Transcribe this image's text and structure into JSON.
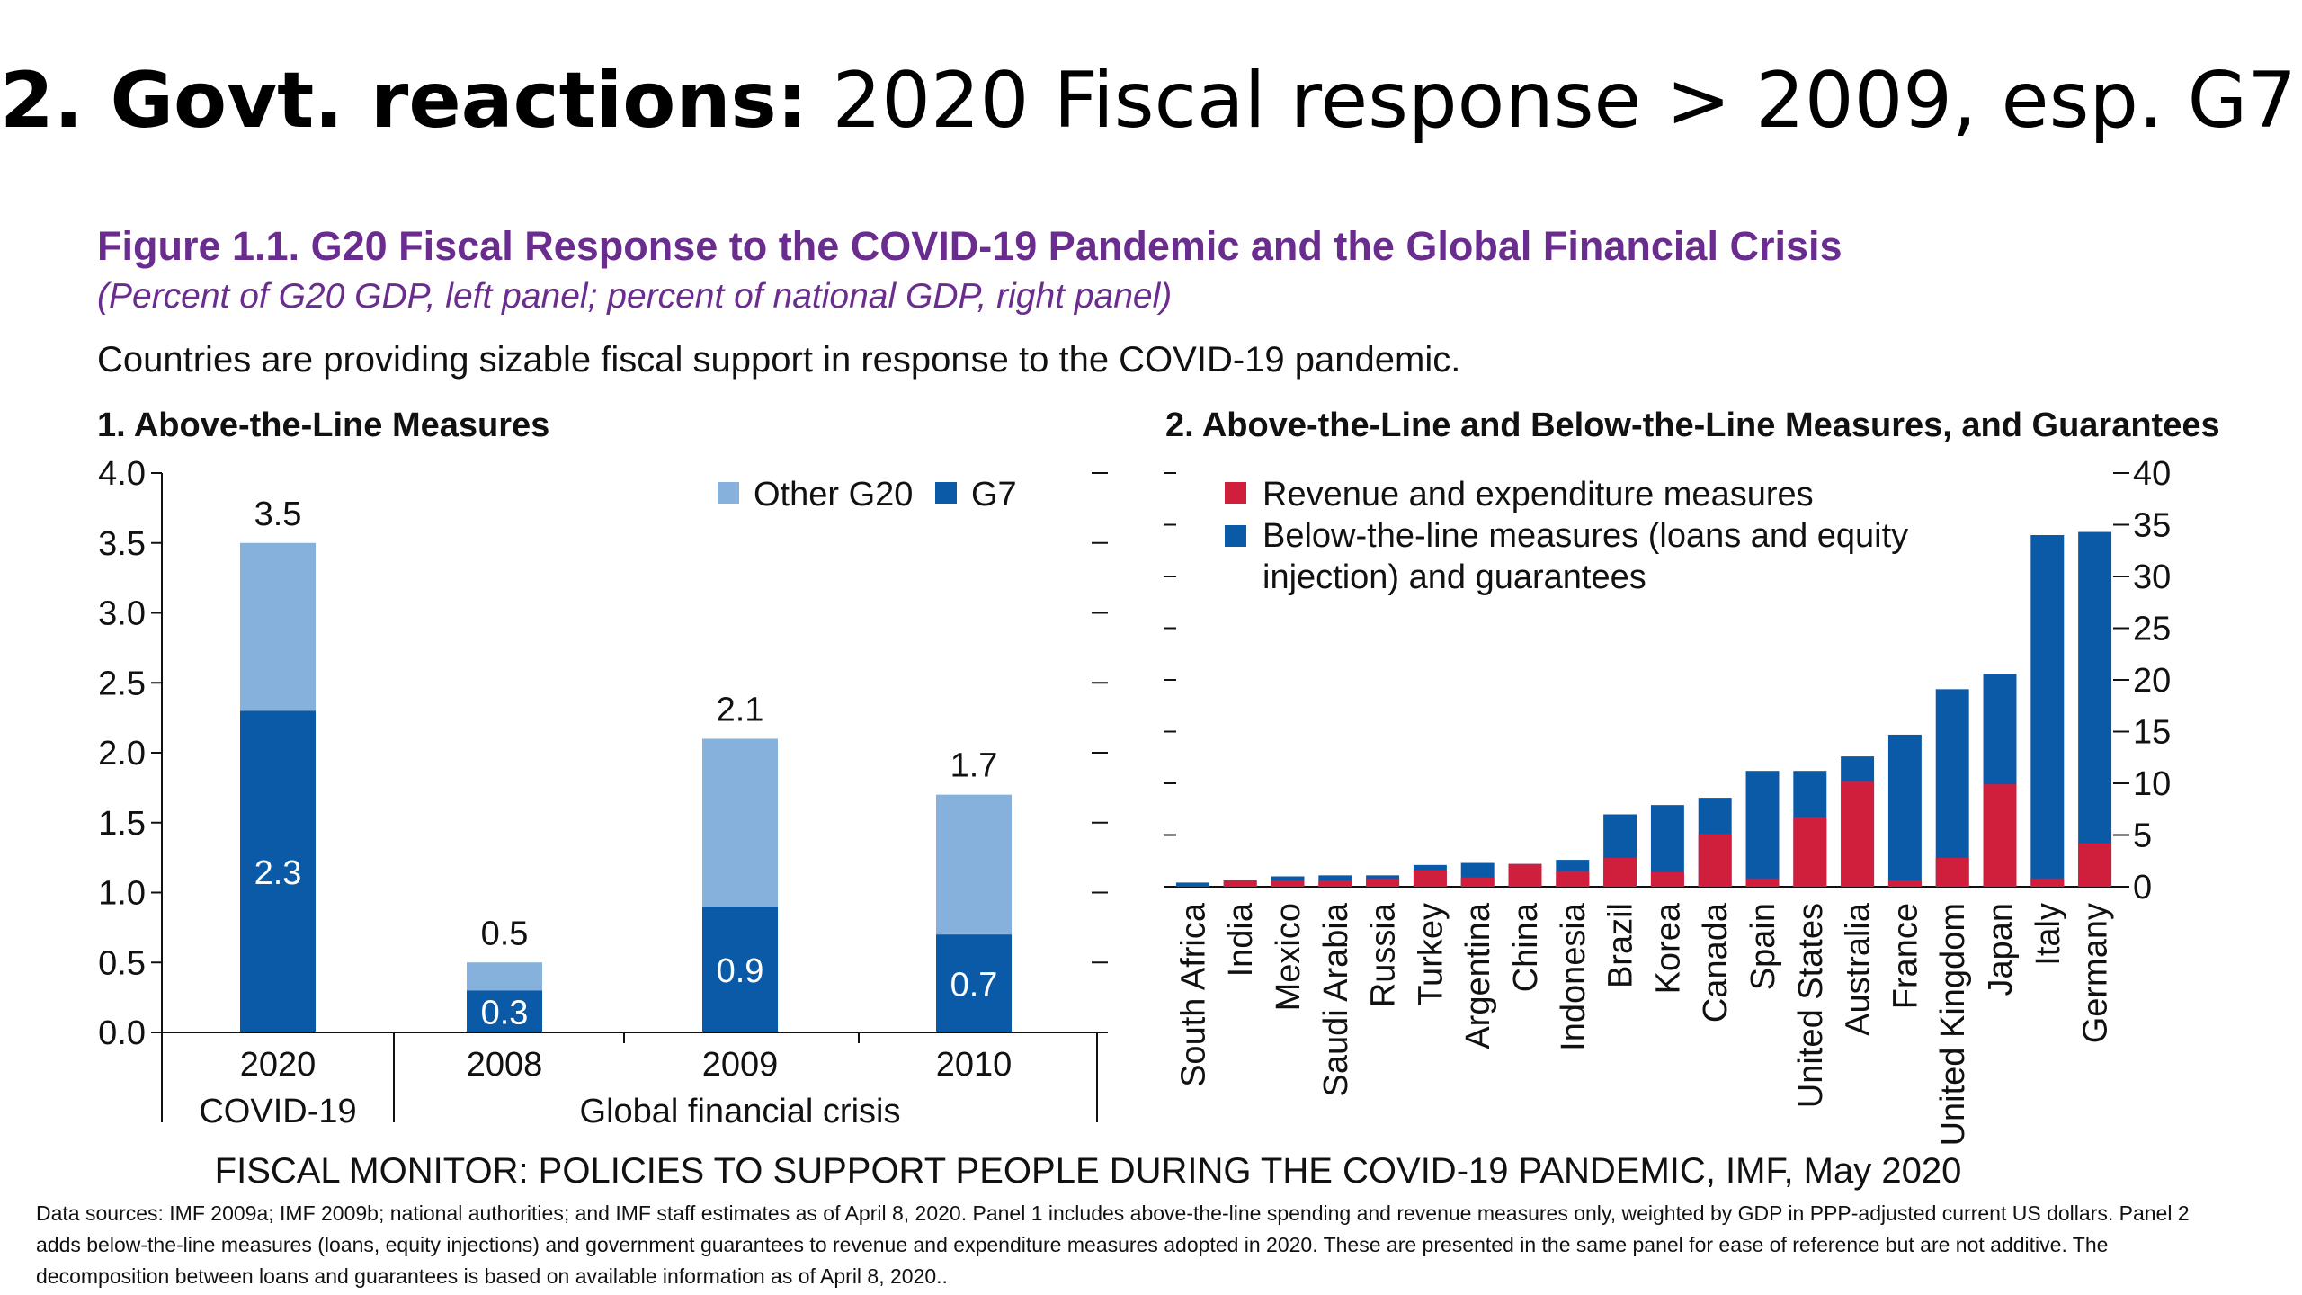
{
  "slide": {
    "title_bold": "2. Govt. reactions:",
    "title_rest": " 2020 Fiscal response > 2009, esp. G7."
  },
  "figure": {
    "title": "Figure 1.1. G20 Fiscal Response to the COVID-19 Pandemic and the Global Financial Crisis",
    "subtitle": "(Percent of G20 GDP, left panel; percent of national GDP, right panel)",
    "lead": "Countries are providing sizable fiscal support in response to the COVID-19 pandemic."
  },
  "colors": {
    "light_blue": "#86b1dc",
    "dark_blue": "#0b5aa8",
    "red": "#cf1f3c"
  },
  "chart_data": [
    {
      "type": "bar",
      "stacked": true,
      "title": "1. Above-the-Line Measures",
      "categories": [
        "2020",
        "2008",
        "2009",
        "2010"
      ],
      "groups": [
        {
          "label": "COVID-19",
          "categories": [
            "2020"
          ]
        },
        {
          "label": "Global financial crisis",
          "categories": [
            "2008",
            "2009",
            "2010"
          ]
        }
      ],
      "series": [
        {
          "name": "G7",
          "color": "#0b5aa8",
          "values": [
            2.3,
            0.3,
            0.9,
            0.7
          ],
          "labels": [
            "2.3",
            "0.3",
            "0.9",
            "0.7"
          ]
        },
        {
          "name": "Other G20",
          "color": "#86b1dc",
          "values": [
            1.2,
            0.2,
            1.2,
            1.0
          ]
        }
      ],
      "totals": [
        3.5,
        0.5,
        2.1,
        1.7
      ],
      "total_labels": [
        "3.5",
        "0.5",
        "2.1",
        "1.7"
      ],
      "ylim": [
        0,
        4
      ],
      "yticks": [
        "0.0",
        "0.5",
        "1.0",
        "1.5",
        "2.0",
        "2.5",
        "3.0",
        "3.5",
        "4.0"
      ],
      "legend": {
        "placement": "top-right",
        "order": [
          "Other G20",
          "G7"
        ]
      }
    },
    {
      "type": "bar",
      "stacked": false,
      "overlapping": true,
      "title": "2. Above-the-Line and Below-the-Line Measures, and Guarantees",
      "categories": [
        "South Africa",
        "India",
        "Mexico",
        "Saudi Arabia",
        "Russia",
        "Turkey",
        "Argentina",
        "China",
        "Indonesia",
        "Brazil",
        "Korea",
        "Canada",
        "Spain",
        "United States",
        "Australia",
        "France",
        "United Kingdom",
        "Japan",
        "Italy",
        "Germany"
      ],
      "series": [
        {
          "name": "Below-the-line measures (loans and equity injection) and guarantees",
          "color": "#0b5aa8",
          "values": [
            0.4,
            0.6,
            1.0,
            1.1,
            1.1,
            2.1,
            2.3,
            2.2,
            2.6,
            7.0,
            7.9,
            8.6,
            11.2,
            11.2,
            12.6,
            14.7,
            19.1,
            20.6,
            34.0,
            34.3
          ]
        },
        {
          "name": "Revenue and expenditure measures",
          "color": "#cf1f3c",
          "values": [
            0.0,
            0.6,
            0.6,
            0.6,
            0.8,
            1.6,
            0.9,
            2.2,
            1.5,
            2.8,
            1.4,
            5.1,
            0.8,
            6.7,
            10.2,
            0.6,
            2.8,
            9.9,
            0.8,
            4.2
          ]
        }
      ],
      "legend_lines": [
        [
          "Revenue and expenditure measures"
        ],
        [
          "Below-the-line measures (loans and equity",
          "injection) and guarantees"
        ]
      ],
      "ylim": [
        0,
        40
      ],
      "yticks": [
        "0",
        "5",
        "10",
        "15",
        "20",
        "25",
        "30",
        "35",
        "40"
      ],
      "yaxis_side": "right",
      "legend": {
        "placement": "top-left"
      }
    }
  ],
  "source": {
    "line": "FISCAL MONITOR: POLICIES TO SUPPORT PEOPLE DURING THE COVID-19 PANDEMIC, IMF, May 2020",
    "notes": "Data sources: IMF 2009a; IMF 2009b; national authorities; and IMF staff estimates as of April 8, 2020. Panel 1 includes above-the-line spending and revenue measures only, weighted by GDP in PPP-adjusted current US dollars. Panel 2 adds below-the-line measures (loans, equity injections) and government guarantees to revenue and expenditure measures adopted in 2020. These are presented in the same panel for ease of reference but are not additive. The decomposition between loans and guarantees is based on available information as of April 8, 2020.."
  }
}
